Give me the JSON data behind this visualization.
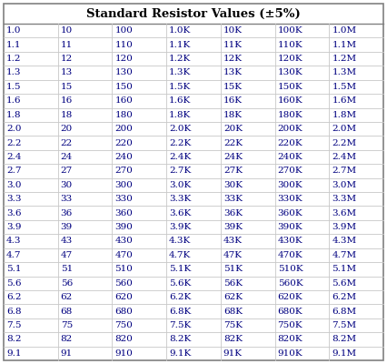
{
  "title": "Standard Resistor Values (±5%)",
  "columns": 7,
  "rows": [
    [
      "1.0",
      "10",
      "100",
      "1.0K",
      "10K",
      "100K",
      "1.0M"
    ],
    [
      "1.1",
      "11",
      "110",
      "1.1K",
      "11K",
      "110K",
      "1.1M"
    ],
    [
      "1.2",
      "12",
      "120",
      "1.2K",
      "12K",
      "120K",
      "1.2M"
    ],
    [
      "1.3",
      "13",
      "130",
      "1.3K",
      "13K",
      "130K",
      "1.3M"
    ],
    [
      "1.5",
      "15",
      "150",
      "1.5K",
      "15K",
      "150K",
      "1.5M"
    ],
    [
      "1.6",
      "16",
      "160",
      "1.6K",
      "16K",
      "160K",
      "1.6M"
    ],
    [
      "1.8",
      "18",
      "180",
      "1.8K",
      "18K",
      "180K",
      "1.8M"
    ],
    [
      "2.0",
      "20",
      "200",
      "2.0K",
      "20K",
      "200K",
      "2.0M"
    ],
    [
      "2.2",
      "22",
      "220",
      "2.2K",
      "22K",
      "220K",
      "2.2M"
    ],
    [
      "2.4",
      "24",
      "240",
      "2.4K",
      "24K",
      "240K",
      "2.4M"
    ],
    [
      "2.7",
      "27",
      "270",
      "2.7K",
      "27K",
      "270K",
      "2.7M"
    ],
    [
      "3.0",
      "30",
      "300",
      "3.0K",
      "30K",
      "300K",
      "3.0M"
    ],
    [
      "3.3",
      "33",
      "330",
      "3.3K",
      "33K",
      "330K",
      "3.3M"
    ],
    [
      "3.6",
      "36",
      "360",
      "3.6K",
      "36K",
      "360K",
      "3.6M"
    ],
    [
      "3.9",
      "39",
      "390",
      "3.9K",
      "39K",
      "390K",
      "3.9M"
    ],
    [
      "4.3",
      "43",
      "430",
      "4.3K",
      "43K",
      "430K",
      "4.3M"
    ],
    [
      "4.7",
      "47",
      "470",
      "4.7K",
      "47K",
      "470K",
      "4.7M"
    ],
    [
      "5.1",
      "51",
      "510",
      "5.1K",
      "51K",
      "510K",
      "5.1M"
    ],
    [
      "5.6",
      "56",
      "560",
      "5.6K",
      "56K",
      "560K",
      "5.6M"
    ],
    [
      "6.2",
      "62",
      "620",
      "6.2K",
      "62K",
      "620K",
      "6.2M"
    ],
    [
      "6.8",
      "68",
      "680",
      "6.8K",
      "68K",
      "680K",
      "6.8M"
    ],
    [
      "7.5",
      "75",
      "750",
      "7.5K",
      "75K",
      "750K",
      "7.5M"
    ],
    [
      "8.2",
      "82",
      "820",
      "8.2K",
      "82K",
      "820K",
      "8.2M"
    ],
    [
      "9.1",
      "91",
      "910",
      "9.1K",
      "91K",
      "910K",
      "9.1M"
    ]
  ],
  "background_color": "#ffffff",
  "outer_border_color": "#808080",
  "inner_line_color": "#c8c8c8",
  "title_text_color": "#000000",
  "cell_text_color": "#000080",
  "title_fontsize": 9.5,
  "cell_fontsize": 7.5
}
